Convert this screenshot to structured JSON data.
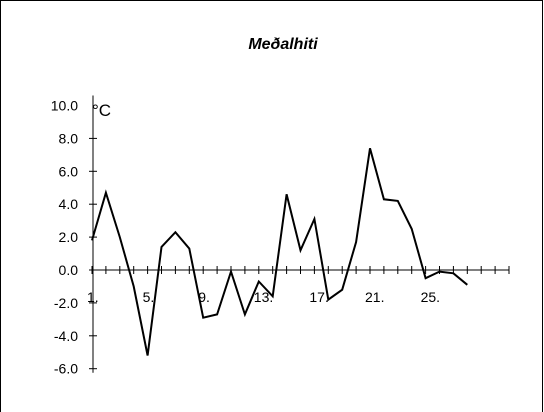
{
  "chart_data": {
    "type": "line",
    "title": "Meðalhiti",
    "unit": "°C",
    "ylim": [
      -6.0,
      10.0
    ],
    "y_ticks": [
      "10.0",
      "8.0",
      "6.0",
      "4.0",
      "2.0",
      "0.0",
      "-2.0",
      "-4.0",
      "-6.0"
    ],
    "x_tick_labels": [
      {
        "day": 1,
        "label": "1."
      },
      {
        "day": 5,
        "label": "5."
      },
      {
        "day": 9,
        "label": "9."
      },
      {
        "day": 13,
        "label": "13."
      },
      {
        "day": 17,
        "label": "17."
      },
      {
        "day": 21,
        "label": "21."
      },
      {
        "day": 25,
        "label": "25."
      }
    ],
    "xlim": [
      1,
      31
    ],
    "grid": false,
    "series": [
      {
        "x": [
          1,
          2,
          3,
          4,
          5,
          6,
          7,
          8,
          9,
          10,
          11,
          12,
          13,
          14,
          15,
          16,
          17,
          18,
          19,
          20,
          21,
          22,
          23,
          24,
          25,
          26,
          27,
          28
        ],
        "values": [
          1.8,
          4.7,
          2.0,
          -1.0,
          -5.2,
          1.4,
          2.3,
          1.3,
          -2.9,
          -2.7,
          -0.1,
          -2.7,
          -0.7,
          -1.6,
          4.6,
          1.2,
          3.1,
          -1.8,
          -1.2,
          1.7,
          7.4,
          4.3,
          4.2,
          2.5,
          -0.5,
          -0.1,
          -0.2,
          -0.9
        ],
        "color": "#000000"
      }
    ]
  }
}
